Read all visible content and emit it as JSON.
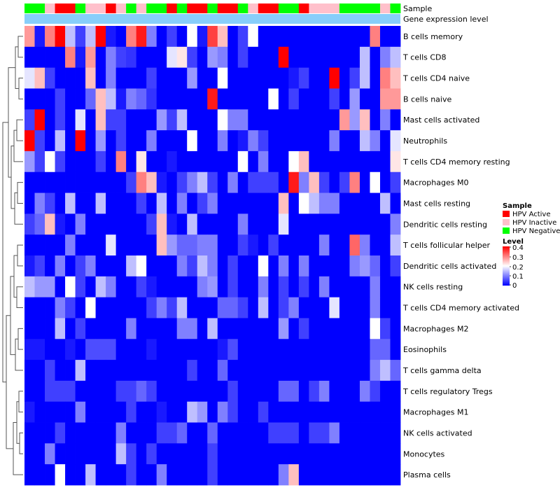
{
  "chart_data": {
    "type": "heatmap",
    "title": "",
    "annotation_tracks": [
      "Sample",
      "Gene expression level"
    ],
    "row_labels": [
      "B cells memory",
      "T cells CD8",
      "T cells CD4 naive",
      "B cells naive",
      "Mast cells activated",
      "Neutrophils",
      "T cells CD4 memory resting",
      "Macrophages M0",
      "Mast cells resting",
      "Dendritic cells resting",
      "T cells follicular helper",
      "Dendritic cells activated",
      "NK cells resting",
      "T cells CD4 memory activated",
      "Macrophages M2",
      "Eosinophils",
      "T cells gamma delta",
      "T cells regulatory  Tregs",
      "Macrophages M1",
      "NK cells activated",
      "Monocytes",
      "Plasma cells"
    ],
    "sample_groups": [
      "N",
      "N",
      "I",
      "A",
      "A",
      "N",
      "I",
      "I",
      "A",
      "I",
      "N",
      "I",
      "N",
      "N",
      "A",
      "N",
      "A",
      "A",
      "N",
      "A",
      "A",
      "N",
      "I",
      "A",
      "A",
      "N",
      "N",
      "A",
      "I",
      "I",
      "I",
      "N",
      "N",
      "N",
      "N",
      "I",
      "N"
    ],
    "legend": {
      "sample": {
        "title": "Sample",
        "entries": [
          {
            "key": "A",
            "label": "HPV Active",
            "color": "#ff0000"
          },
          {
            "key": "I",
            "label": "HPV Inactive",
            "color": "#ffc0cb"
          },
          {
            "key": "N",
            "label": "HPV Negative",
            "color": "#00ff00"
          }
        ]
      },
      "level": {
        "title": "Level",
        "ticks": [
          "0.4",
          "0.3",
          "0.2",
          "0.1",
          "0"
        ],
        "range": [
          0,
          0.4
        ],
        "colors": [
          "#0000ff",
          "#ffffff",
          "#ff0000"
        ]
      }
    },
    "expression_color": "#87cefa",
    "values": [
      [
        0.28,
        0.02,
        0.3,
        0.4,
        0.15,
        0.05,
        0.15,
        0.4,
        0.02,
        0.0,
        0.3,
        0.38,
        0.1,
        0.0,
        0.05,
        0.0,
        0.2,
        0.02,
        0.35,
        0.25,
        0.0,
        0.05,
        0.2,
        0.0,
        0.0,
        0.0,
        0.0,
        0.0,
        0.0,
        0.0,
        0.0,
        0.0,
        0.0,
        0.0,
        0.3,
        0.0,
        0.0
      ],
      [
        0.0,
        0.0,
        0.0,
        0.0,
        0.3,
        0.02,
        0.28,
        0.0,
        0.1,
        0.05,
        0.04,
        0.0,
        0.0,
        0.0,
        0.18,
        0.22,
        0.05,
        0.0,
        0.12,
        0.1,
        0.0,
        0.05,
        0.0,
        0.0,
        0.0,
        0.4,
        0.0,
        0.0,
        0.0,
        0.0,
        0.0,
        0.0,
        0.0,
        0.15,
        0.0,
        0.1,
        0.15
      ],
      [
        0.18,
        0.25,
        0.05,
        0.0,
        0.0,
        0.0,
        0.25,
        0.0,
        0.1,
        0.0,
        0.0,
        0.0,
        0.05,
        0.0,
        0.0,
        0.0,
        0.12,
        0.0,
        0.0,
        0.2,
        0.0,
        0.0,
        0.0,
        0.0,
        0.0,
        0.0,
        0.02,
        0.05,
        0.0,
        0.0,
        0.4,
        0.0,
        0.05,
        0.15,
        0.0,
        0.3,
        0.25
      ],
      [
        0.0,
        0.0,
        0.0,
        0.05,
        0.0,
        0.0,
        0.08,
        0.25,
        0.15,
        0.02,
        0.1,
        0.08,
        0.04,
        0.0,
        0.0,
        0.0,
        0.0,
        0.0,
        0.38,
        0.0,
        0.0,
        0.0,
        0.0,
        0.0,
        0.2,
        0.0,
        0.05,
        0.0,
        0.0,
        0.0,
        0.05,
        0.0,
        0.12,
        0.0,
        0.0,
        0.28,
        0.28
      ],
      [
        0.05,
        0.4,
        0.0,
        0.05,
        0.0,
        0.18,
        0.0,
        0.25,
        0.05,
        0.05,
        0.0,
        0.0,
        0.0,
        0.12,
        0.05,
        0.15,
        0.0,
        0.0,
        0.0,
        0.2,
        0.1,
        0.1,
        0.0,
        0.0,
        0.0,
        0.0,
        0.0,
        0.0,
        0.0,
        0.0,
        0.0,
        0.28,
        0.12,
        0.25,
        0.0,
        0.1,
        0.0
      ],
      [
        0.4,
        0.05,
        0.0,
        0.15,
        0.0,
        0.4,
        0.0,
        0.12,
        0.0,
        0.05,
        0.0,
        0.0,
        0.1,
        0.0,
        0.0,
        0.0,
        0.2,
        0.0,
        0.0,
        0.1,
        0.0,
        0.02,
        0.1,
        0.05,
        0.0,
        0.0,
        0.0,
        0.0,
        0.0,
        0.0,
        0.1,
        0.0,
        0.0,
        0.15,
        0.1,
        0.0,
        0.18
      ],
      [
        0.12,
        0.05,
        0.2,
        0.05,
        0.0,
        0.0,
        0.0,
        0.05,
        0.0,
        0.3,
        0.0,
        0.22,
        0.0,
        0.0,
        0.02,
        0.0,
        0.0,
        0.0,
        0.0,
        0.0,
        0.0,
        0.2,
        0.0,
        0.1,
        0.0,
        0.0,
        0.2,
        0.25,
        0.0,
        0.0,
        0.0,
        0.0,
        0.0,
        0.0,
        0.0,
        0.0,
        0.22
      ],
      [
        0.0,
        0.0,
        0.0,
        0.0,
        0.0,
        0.0,
        0.0,
        0.0,
        0.0,
        0.0,
        0.05,
        0.3,
        0.25,
        0.02,
        0.0,
        0.05,
        0.1,
        0.15,
        0.05,
        0.0,
        0.1,
        0.0,
        0.05,
        0.05,
        0.05,
        0.0,
        0.38,
        0.1,
        0.25,
        0.05,
        0.0,
        0.05,
        0.3,
        0.0,
        0.2,
        0.0,
        0.05
      ],
      [
        0.0,
        0.1,
        0.05,
        0.0,
        0.15,
        0.0,
        0.0,
        0.15,
        0.0,
        0.0,
        0.0,
        0.05,
        0.0,
        0.15,
        0.0,
        0.1,
        0.0,
        0.05,
        0.1,
        0.0,
        0.0,
        0.0,
        0.0,
        0.0,
        0.0,
        0.25,
        0.0,
        0.2,
        0.15,
        0.1,
        0.1,
        0.0,
        0.0,
        0.0,
        0.0,
        0.15,
        0.0
      ],
      [
        0.05,
        0.08,
        0.25,
        0.02,
        0.0,
        0.1,
        0.0,
        0.0,
        0.0,
        0.0,
        0.0,
        0.0,
        0.05,
        0.25,
        0.02,
        0.0,
        0.15,
        0.0,
        0.0,
        0.0,
        0.0,
        0.1,
        0.0,
        0.0,
        0.0,
        0.18,
        0.0,
        0.0,
        0.0,
        0.0,
        0.0,
        0.0,
        0.0,
        0.0,
        0.0,
        0.0,
        0.1
      ],
      [
        0.0,
        0.0,
        0.0,
        0.0,
        0.1,
        0.0,
        0.0,
        0.0,
        0.18,
        0.0,
        0.0,
        0.0,
        0.0,
        0.25,
        0.12,
        0.08,
        0.08,
        0.1,
        0.1,
        0.0,
        0.0,
        0.05,
        0.02,
        0.0,
        0.05,
        0.0,
        0.0,
        0.0,
        0.0,
        0.1,
        0.0,
        0.0,
        0.32,
        0.1,
        0.0,
        0.0,
        0.15
      ],
      [
        0.02,
        0.05,
        0.0,
        0.1,
        0.0,
        0.05,
        0.1,
        0.0,
        0.0,
        0.0,
        0.15,
        0.2,
        0.0,
        0.0,
        0.0,
        0.1,
        0.05,
        0.15,
        0.1,
        0.0,
        0.05,
        0.0,
        0.0,
        0.2,
        0.0,
        0.1,
        0.0,
        0.1,
        0.0,
        0.0,
        0.0,
        0.0,
        0.1,
        0.12,
        0.08,
        0.0,
        0.05
      ],
      [
        0.15,
        0.12,
        0.12,
        0.0,
        0.2,
        0.05,
        0.0,
        0.15,
        0.1,
        0.0,
        0.0,
        0.05,
        0.02,
        0.0,
        0.0,
        0.0,
        0.0,
        0.1,
        0.12,
        0.0,
        0.05,
        0.0,
        0.0,
        0.1,
        0.0,
        0.05,
        0.0,
        0.05,
        0.0,
        0.1,
        0.0,
        0.0,
        0.0,
        0.0,
        0.1,
        0.0,
        0.0
      ],
      [
        0.0,
        0.0,
        0.0,
        0.1,
        0.05,
        0.0,
        0.2,
        0.0,
        0.0,
        0.0,
        0.0,
        0.0,
        0.05,
        0.1,
        0.05,
        0.15,
        0.0,
        0.0,
        0.0,
        0.08,
        0.08,
        0.05,
        0.0,
        0.15,
        0.0,
        0.05,
        0.1,
        0.0,
        0.0,
        0.0,
        0.18,
        0.0,
        0.0,
        0.0,
        0.1,
        0.0,
        0.0
      ],
      [
        0.0,
        0.0,
        0.0,
        0.15,
        0.0,
        0.05,
        0.0,
        0.0,
        0.0,
        0.0,
        0.1,
        0.0,
        0.0,
        0.0,
        0.0,
        0.1,
        0.1,
        0.0,
        0.15,
        0.0,
        0.0,
        0.0,
        0.0,
        0.0,
        0.0,
        0.12,
        0.0,
        0.05,
        0.0,
        0.0,
        0.0,
        0.0,
        0.0,
        0.0,
        0.2,
        0.05,
        0.0
      ],
      [
        0.02,
        0.02,
        0.0,
        0.0,
        0.02,
        0.0,
        0.06,
        0.06,
        0.06,
        0.0,
        0.0,
        0.0,
        0.02,
        0.0,
        0.0,
        0.0,
        0.0,
        0.0,
        0.0,
        0.02,
        0.06,
        0.0,
        0.0,
        0.0,
        0.0,
        0.0,
        0.0,
        0.0,
        0.0,
        0.0,
        0.0,
        0.0,
        0.0,
        0.0,
        0.08,
        0.08,
        0.0
      ],
      [
        0.0,
        0.0,
        0.05,
        0.0,
        0.0,
        0.15,
        0.0,
        0.0,
        0.0,
        0.0,
        0.0,
        0.0,
        0.0,
        0.0,
        0.0,
        0.0,
        0.05,
        0.0,
        0.0,
        0.08,
        0.0,
        0.0,
        0.0,
        0.0,
        0.0,
        0.0,
        0.0,
        0.0,
        0.0,
        0.0,
        0.0,
        0.0,
        0.0,
        0.0,
        0.1,
        0.15,
        0.08
      ],
      [
        0.0,
        0.0,
        0.05,
        0.05,
        0.05,
        0.0,
        0.0,
        0.0,
        0.0,
        0.05,
        0.05,
        0.08,
        0.05,
        0.0,
        0.0,
        0.0,
        0.0,
        0.0,
        0.0,
        0.0,
        0.05,
        0.0,
        0.0,
        0.0,
        0.0,
        0.08,
        0.08,
        0.0,
        0.05,
        0.1,
        0.0,
        0.0,
        0.0,
        0.1,
        0.05,
        0.0,
        0.0
      ],
      [
        0.02,
        0.0,
        0.0,
        0.0,
        0.0,
        0.1,
        0.0,
        0.0,
        0.0,
        0.0,
        0.05,
        0.0,
        0.0,
        0.02,
        0.0,
        0.0,
        0.15,
        0.12,
        0.0,
        0.1,
        0.05,
        0.0,
        0.0,
        0.05,
        0.0,
        0.0,
        0.0,
        0.0,
        0.0,
        0.0,
        0.0,
        0.0,
        0.0,
        0.0,
        0.0,
        0.0,
        0.0
      ],
      [
        0.0,
        0.0,
        0.0,
        0.05,
        0.0,
        0.0,
        0.0,
        0.0,
        0.0,
        0.1,
        0.0,
        0.0,
        0.0,
        0.05,
        0.05,
        0.08,
        0.0,
        0.0,
        0.08,
        0.0,
        0.0,
        0.0,
        0.0,
        0.0,
        0.05,
        0.05,
        0.05,
        0.0,
        0.05,
        0.05,
        0.1,
        0.0,
        0.0,
        0.0,
        0.0,
        0.0,
        0.0
      ],
      [
        0.0,
        0.0,
        0.1,
        0.0,
        0.0,
        0.0,
        0.0,
        0.0,
        0.0,
        0.15,
        0.05,
        0.0,
        0.05,
        0.0,
        0.0,
        0.0,
        0.0,
        0.0,
        0.05,
        0.0,
        0.0,
        0.0,
        0.0,
        0.0,
        0.0,
        0.0,
        0.0,
        0.0,
        0.0,
        0.0,
        0.0,
        0.0,
        0.0,
        0.0,
        0.0,
        0.0,
        0.0
      ],
      [
        0.0,
        0.0,
        0.0,
        0.2,
        0.0,
        0.0,
        0.15,
        0.0,
        0.0,
        0.0,
        0.05,
        0.0,
        0.0,
        0.1,
        0.0,
        0.0,
        0.0,
        0.0,
        0.05,
        0.0,
        0.0,
        0.0,
        0.0,
        0.0,
        0.0,
        0.1,
        0.25,
        0.0,
        0.0,
        0.0,
        0.0,
        0.0,
        0.0,
        0.0,
        0.0,
        0.0,
        0.0
      ]
    ]
  }
}
